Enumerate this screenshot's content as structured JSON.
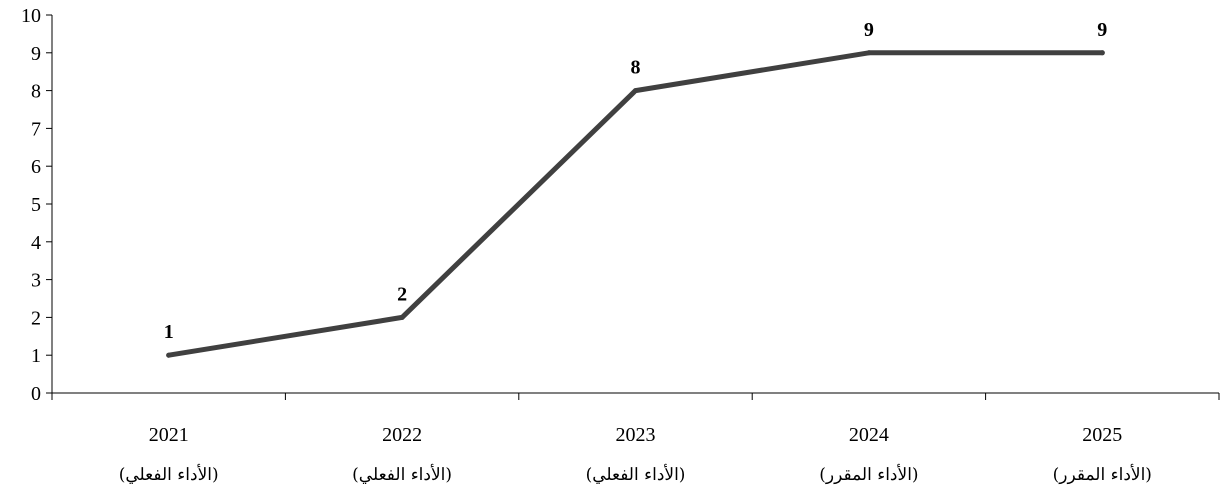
{
  "chart_data": {
    "type": "line",
    "categories": [
      {
        "year": "2021",
        "sub": "(الأداء الفعلي)"
      },
      {
        "year": "2022",
        "sub": "(الأداء الفعلي)"
      },
      {
        "year": "2023",
        "sub": "(الأداء الفعلي)"
      },
      {
        "year": "2024",
        "sub": "(الأداء المقرر)"
      },
      {
        "year": "2025",
        "sub": "(الأداء المقرر)"
      }
    ],
    "series": [
      {
        "values": [
          1,
          2,
          8,
          9,
          9
        ],
        "data_labels": [
          "1",
          "2",
          "8",
          "9",
          "9"
        ]
      }
    ],
    "y_ticks": [
      "0",
      "1",
      "2",
      "3",
      "4",
      "5",
      "6",
      "7",
      "8",
      "9",
      "10"
    ],
    "ylim": [
      0,
      10
    ],
    "grid": false,
    "legend": "none",
    "colors": {
      "line": "#404040",
      "axis": "#000000"
    }
  }
}
